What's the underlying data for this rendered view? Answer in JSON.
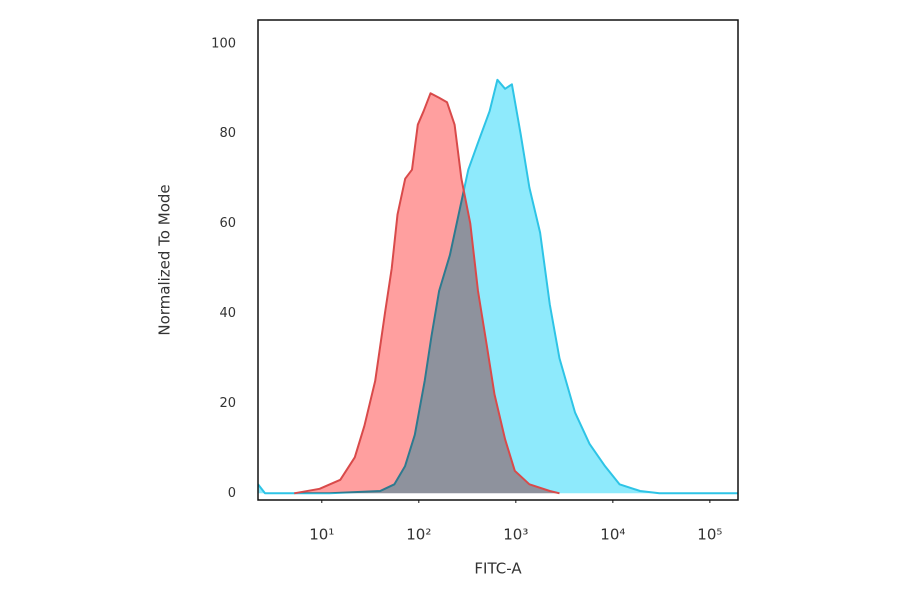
{
  "chart_data": {
    "type": "area",
    "xlabel": "FITC-A",
    "ylabel": "Normalized To Mode",
    "xscale": "log",
    "xlim": [
      2.2,
      195000
    ],
    "ylim": [
      -1.5,
      105.3
    ],
    "xticks": [
      {
        "value": 10,
        "label": "10¹"
      },
      {
        "value": 100,
        "label": "10²"
      },
      {
        "value": 1000,
        "label": "10³"
      },
      {
        "value": 10000,
        "label": "10⁴"
      },
      {
        "value": 100000,
        "label": "10⁵"
      }
    ],
    "yticks": [
      0,
      20,
      40,
      60,
      80,
      100
    ],
    "series": [
      {
        "color": "#2ec4e6",
        "fill": "#8eeafc",
        "x": [
          2.2,
          2.6,
          12,
          40,
          56,
          72,
          91,
          115,
          135,
          162,
          209,
          257,
          324,
          407,
          537,
          646,
          776,
          912,
          1120,
          1380,
          1780,
          2240,
          2820,
          4070,
          5750,
          8320,
          11700,
          19100,
          30200,
          195000
        ],
        "values": [
          2,
          0,
          0,
          0.5,
          2,
          6,
          13,
          25,
          35,
          45,
          53,
          62,
          72,
          78,
          85,
          92,
          90,
          91,
          80,
          68,
          58,
          42,
          30,
          18,
          11,
          6,
          2,
          0.5,
          0,
          0
        ]
      },
      {
        "color": "#d94a4a",
        "fill": "#ff9f9f",
        "x": [
          5.2,
          9.5,
          15.5,
          21.9,
          27.5,
          35.5,
          44.7,
          52.5,
          60.3,
          72.4,
          85.1,
          97.7,
          112,
          132,
          162,
          195,
          234,
          275,
          339,
          407,
          501,
          603,
          776,
          977,
          1380,
          2240,
          2820
        ],
        "values": [
          0,
          1,
          3,
          8,
          15,
          25,
          40,
          50,
          62,
          70,
          72,
          82,
          85,
          89,
          88,
          87,
          82,
          70,
          60,
          45,
          33,
          22,
          12,
          5,
          2,
          0.5,
          0
        ]
      }
    ]
  }
}
